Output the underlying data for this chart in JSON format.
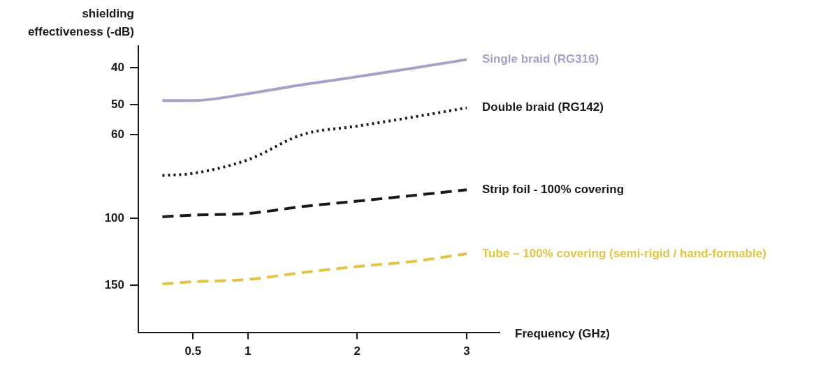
{
  "chart_data": {
    "type": "line",
    "xlabel": "Frequency (GHz)",
    "ylabel": "shielding\neffectiveness (-dB)",
    "x": [
      0.22,
      0.5,
      1,
      1.5,
      2,
      2.5,
      3
    ],
    "series": [
      {
        "name": "Single braid (RG316)",
        "color": "#a99fcb",
        "line_style": "solid",
        "values": [
          48.8,
          48.8,
          46.8,
          44.3,
          42.2,
          40.1,
          38
        ]
      },
      {
        "name": "Double braid (RG142)",
        "color": "#1a1a1a",
        "line_style": "dotted",
        "values": [
          77,
          76,
          70,
          60,
          57,
          54,
          51
        ]
      },
      {
        "name": "Strip foil - 100% covering",
        "color": "#1a1a1a",
        "line_style": "dashed",
        "values": [
          99,
          98,
          97,
          93,
          90,
          87,
          84
        ]
      },
      {
        "name": "Tube – 100% covering (semi-rigid / hand-formable)",
        "color": "#e3c445",
        "line_style": "dashed",
        "values": [
          149,
          147,
          145,
          139,
          134,
          130,
          124
        ]
      }
    ],
    "xlim": [
      0,
      3.3
    ],
    "xticks": [
      0.5,
      1,
      2,
      3
    ],
    "ylim": [
      200,
      35
    ],
    "yticks": [
      40,
      50,
      60,
      100,
      150
    ],
    "log": "y",
    "grid": false,
    "legend": false,
    "marker": "none"
  }
}
